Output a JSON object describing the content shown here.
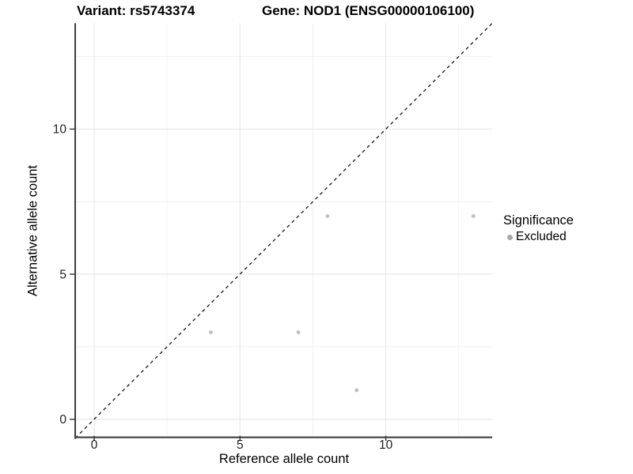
{
  "header": {
    "title_left": "Variant: rs5743374",
    "title_right": "Gene: NOD1 (ENSG00000106100)"
  },
  "chart_data": {
    "type": "scatter",
    "title_left": "Variant: rs5743374",
    "title_right": "Gene: NOD1 (ENSG00000106100)",
    "xlabel": "Reference allele count",
    "ylabel": "Alternative allele count",
    "xlim": [
      -0.65,
      13.65
    ],
    "ylim": [
      -0.65,
      13.65
    ],
    "x_ticks": [
      0,
      5,
      10
    ],
    "y_ticks": [
      0,
      5,
      10
    ],
    "minor_gridlines": [
      2.5,
      7.5,
      12.5
    ],
    "grid": "major+minor",
    "series": [
      {
        "name": "Excluded",
        "points": [
          [
            4,
            3
          ],
          [
            7,
            3
          ],
          [
            8,
            7
          ],
          [
            9,
            1
          ],
          [
            13,
            7
          ]
        ],
        "color": "#bfbfbf"
      }
    ],
    "reference_line": {
      "type": "identity",
      "style": "dashed",
      "from": [
        -0.65,
        -0.65
      ],
      "to": [
        13.65,
        13.65
      ]
    },
    "legend": {
      "title": "Significance",
      "position": "right",
      "items": [
        {
          "label": "Excluded",
          "marker": "circle",
          "color": "#a8a8a8"
        }
      ]
    },
    "colors": {
      "background": "#ffffff",
      "point": "#bfbfbf",
      "legend_point": "#a8a8a8",
      "grid_major": "#e6e6e6",
      "grid_minor": "#f2f2f2",
      "axis_line": "#3d3d3d",
      "tick_mark": "#333333",
      "tick_label": "#1f1f1f",
      "reference_line": "#141414"
    }
  }
}
